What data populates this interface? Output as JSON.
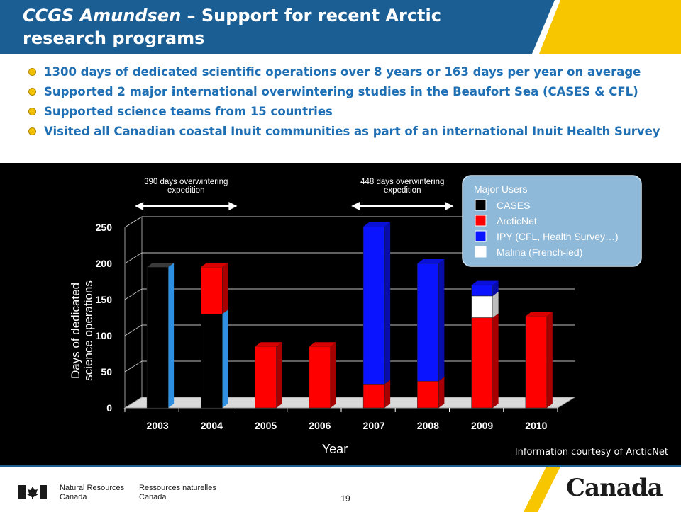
{
  "header": {
    "title_ship": "CCGS Amundsen",
    "title_rest": " – Support for recent Arctic research programs",
    "colors": {
      "blue": "#1b5e94",
      "yellow": "#f7c600"
    }
  },
  "bullets": [
    "1300 days of dedicated scientific operations over 8 years or 163 days per year on average",
    "Supported 2 major international overwintering studies in the Beaufort Sea (CASES & CFL)",
    "Supported science teams from 15 countries",
    "Visited all Canadian coastal Inuit communities as part of an international Inuit Health Survey"
  ],
  "chart_data": {
    "type": "bar",
    "stacked": true,
    "three_d": true,
    "categories": [
      "2003",
      "2004",
      "2005",
      "2006",
      "2007",
      "2008",
      "2009",
      "2010"
    ],
    "series": [
      {
        "name": "CASES",
        "color": "#000000",
        "values": [
          195,
          130,
          0,
          0,
          0,
          0,
          0,
          0
        ]
      },
      {
        "name": "ArcticNet",
        "color": "#ff0000",
        "values": [
          0,
          65,
          85,
          85,
          33,
          37,
          125,
          127
        ]
      },
      {
        "name": "Malina (French-led)",
        "color": "#ffffff",
        "values": [
          0,
          0,
          0,
          0,
          0,
          0,
          30,
          0
        ]
      },
      {
        "name": "IPY (CFL, Health Survey…)",
        "color": "#0a14ff",
        "values": [
          0,
          0,
          0,
          0,
          218,
          163,
          15,
          0
        ]
      }
    ],
    "xlabel": "Year",
    "ylabel": "Days of dedicated science operations",
    "ylim": [
      0,
      250
    ],
    "yticks": [
      0,
      50,
      100,
      150,
      200,
      250
    ],
    "grid": true,
    "legend": {
      "title": "Major Users",
      "placement": "top-right",
      "entries": [
        "CASES",
        "ArcticNet",
        "IPY (CFL, Health Survey…)",
        "Malina (French-led)"
      ]
    },
    "annotations": [
      {
        "text_line1": "390 days overwintering",
        "text_line2": "expedition",
        "span": [
          "2003",
          "2004"
        ]
      },
      {
        "text_line1": "448 days overwintering",
        "text_line2": "expedition",
        "span": [
          "2007",
          "2008"
        ]
      }
    ]
  },
  "courtesy": "Information courtesy of ArcticNet",
  "footer": {
    "nrcan_en_1": "Natural Resources",
    "nrcan_en_2": "Canada",
    "nrcan_fr_1": "Ressources naturelles",
    "nrcan_fr_2": "Canada",
    "page_number": "19",
    "wordmark": "Canada"
  }
}
